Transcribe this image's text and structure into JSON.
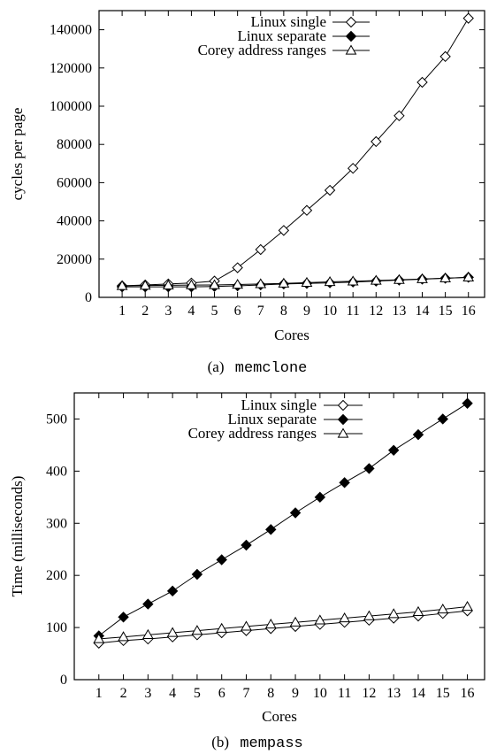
{
  "chart_data": [
    {
      "type": "line",
      "caption_prefix": "(a)",
      "caption_name": "memclone",
      "xlabel": "Cores",
      "ylabel": "cycles per page",
      "x": [
        1,
        2,
        3,
        4,
        5,
        6,
        7,
        8,
        9,
        10,
        11,
        12,
        13,
        14,
        15,
        16
      ],
      "xlim": [
        0,
        16.7
      ],
      "ylim": [
        0,
        150000
      ],
      "yticks": [
        0,
        20000,
        40000,
        60000,
        80000,
        100000,
        120000,
        140000
      ],
      "grid": false,
      "legend_position": "top-right",
      "series": [
        {
          "name": "Linux single",
          "marker": "diamond-open",
          "values": [
            6000,
            6500,
            7000,
            7500,
            8500,
            15500,
            25000,
            35000,
            45500,
            56000,
            67500,
            81500,
            95000,
            112500,
            126000,
            146000
          ]
        },
        {
          "name": "Linux separate",
          "marker": "diamond-filled",
          "values": [
            5500,
            5500,
            5500,
            5500,
            5700,
            6000,
            6500,
            7000,
            7300,
            7600,
            8000,
            8500,
            9000,
            9500,
            10000,
            10500
          ]
        },
        {
          "name": "Corey address ranges",
          "marker": "triangle-open",
          "values": [
            6000,
            6200,
            6300,
            6400,
            6500,
            6700,
            7000,
            7300,
            7700,
            8100,
            8400,
            8800,
            9200,
            9600,
            10000,
            10500
          ]
        }
      ]
    },
    {
      "type": "line",
      "caption_prefix": "(b)",
      "caption_name": "mempass",
      "xlabel": "Cores",
      "ylabel": "Time (milliseconds)",
      "x": [
        1,
        2,
        3,
        4,
        5,
        6,
        7,
        8,
        9,
        10,
        11,
        12,
        13,
        14,
        15,
        16
      ],
      "xlim": [
        0,
        16.7
      ],
      "ylim": [
        0,
        550
      ],
      "yticks": [
        0,
        100,
        200,
        300,
        400,
        500
      ],
      "grid": false,
      "legend_position": "top-left",
      "series": [
        {
          "name": "Linux single",
          "marker": "diamond-open",
          "values": [
            70,
            75,
            78,
            82,
            86,
            90,
            94,
            98,
            102,
            106,
            110,
            114,
            118,
            122,
            127,
            132
          ]
        },
        {
          "name": "Linux separate",
          "marker": "diamond-filled",
          "values": [
            84,
            120,
            145,
            170,
            202,
            230,
            258,
            288,
            320,
            350,
            378,
            405,
            440,
            470,
            500,
            530
          ]
        },
        {
          "name": "Corey address ranges",
          "marker": "triangle-open",
          "values": [
            78,
            82,
            86,
            90,
            94,
            98,
            102,
            106,
            110,
            114,
            118,
            122,
            126,
            130,
            135,
            140
          ]
        }
      ]
    }
  ]
}
